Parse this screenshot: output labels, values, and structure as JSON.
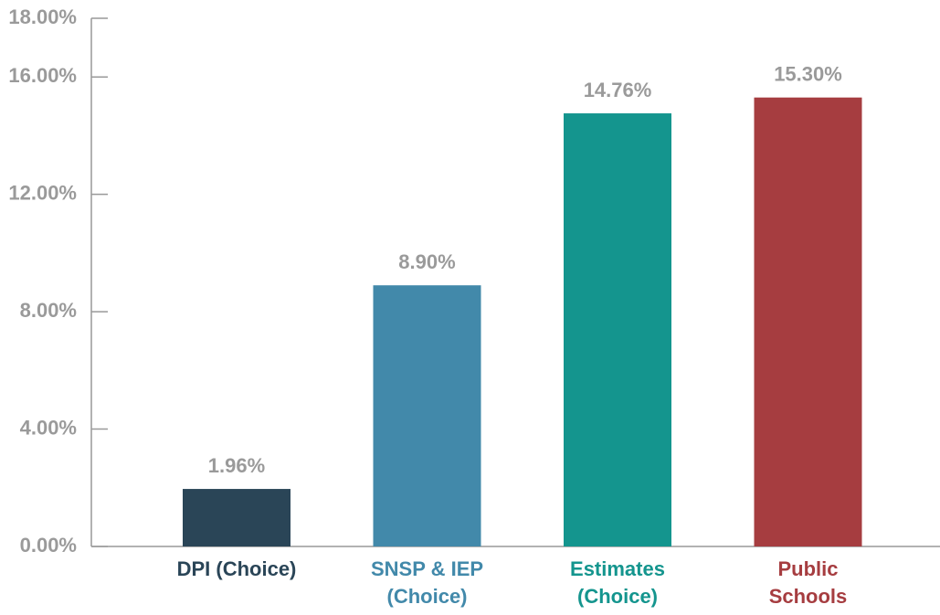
{
  "chart_data": {
    "type": "bar",
    "categories": [
      "DPI (Choice)",
      "SNSP & IEP (Choice)",
      "Estimates (Choice)",
      "Public Schools"
    ],
    "values": [
      1.96,
      8.9,
      14.76,
      15.3
    ],
    "value_labels": [
      "1.96%",
      "8.90%",
      "14.76%",
      "15.30%"
    ],
    "colors": [
      "#2a4557",
      "#4289aa",
      "#14958e",
      "#a63d40"
    ],
    "ylim": [
      0,
      18
    ],
    "yticks": [
      {
        "value": 0,
        "label": "0.00%"
      },
      {
        "value": 4,
        "label": "4.00%"
      },
      {
        "value": 8,
        "label": "8.00%"
      },
      {
        "value": 12,
        "label": "12.00%"
      },
      {
        "value": 16,
        "label": "16.00%"
      },
      {
        "value": 18,
        "label": "18.00%"
      }
    ],
    "grid": false
  }
}
